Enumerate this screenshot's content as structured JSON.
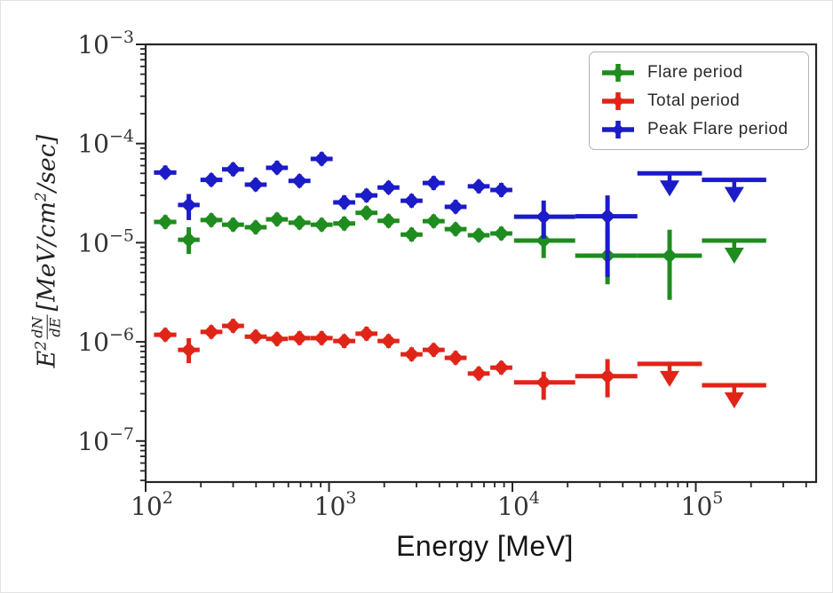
{
  "figure": {
    "xlabel": "Energy [MeV]",
    "ylabel": {
      "var": "E",
      "var_exp": "2",
      "frac_num": "dN",
      "frac_den": "dE",
      "units_pre": "[MeV/cm",
      "units_exp": "2",
      "units_post": "/sec]"
    }
  },
  "axes": {
    "x": {
      "scale": "log",
      "min": 100,
      "max": 450000,
      "major_tick_labels": [
        "10^2",
        "10^3",
        "10^4",
        "10^5"
      ]
    },
    "y": {
      "scale": "log",
      "min": 4e-08,
      "max": 0.001,
      "major_tick_labels": [
        "10^-3",
        "10^-4",
        "10^-5",
        "10^-6",
        "10^-7"
      ]
    },
    "grid": false
  },
  "legend": {
    "position": "upper right",
    "items": [
      {
        "label": "Flare period",
        "color": "#1e8c1e",
        "marker": "plus-errorbar"
      },
      {
        "label": "Total period",
        "color": "#e02518",
        "marker": "plus-errorbar"
      },
      {
        "label": "Peak Flare period",
        "color": "#1b1bc8",
        "marker": "plus-errorbar"
      }
    ]
  },
  "chart_data": {
    "type": "scatter",
    "title": "",
    "xlabel": "Energy [MeV]",
    "ylabel": "E^2 dN/dE [MeV/cm^2/sec]",
    "xscale": "log",
    "yscale": "log",
    "xlim": [
      100,
      450000
    ],
    "ylim": [
      4e-08,
      0.001
    ],
    "legend_position": "upper right",
    "series": [
      {
        "name": "Flare period",
        "color": "#1e8c1e",
        "points": [
          {
            "e": 128,
            "elo": 111,
            "ehi": 147,
            "v": 1.62e-05,
            "vlo": 1.38e-05,
            "vhi": 1.9e-05
          },
          {
            "e": 172,
            "elo": 150,
            "ehi": 197,
            "v": 1.07e-05,
            "vlo": 7.7e-06,
            "vhi": 1.43e-05
          },
          {
            "e": 228,
            "elo": 199,
            "ehi": 262,
            "v": 1.69e-05,
            "vlo": 1.44e-05,
            "vhi": 1.98e-05
          },
          {
            "e": 300,
            "elo": 261,
            "ehi": 344,
            "v": 1.52e-05,
            "vlo": 1.3e-05,
            "vhi": 1.78e-05
          },
          {
            "e": 398,
            "elo": 347,
            "ehi": 457,
            "v": 1.43e-05,
            "vlo": 1.22e-05,
            "vhi": 1.67e-05
          },
          {
            "e": 520,
            "elo": 453,
            "ehi": 597,
            "v": 1.72e-05,
            "vlo": 1.47e-05,
            "vhi": 2.01e-05
          },
          {
            "e": 690,
            "elo": 601,
            "ehi": 792,
            "v": 1.59e-05,
            "vlo": 1.36e-05,
            "vhi": 1.86e-05
          },
          {
            "e": 912,
            "elo": 794,
            "ehi": 1047,
            "v": 1.52e-05,
            "vlo": 1.3e-05,
            "vhi": 1.78e-05
          },
          {
            "e": 1210,
            "elo": 1054,
            "ehi": 1389,
            "v": 1.56e-05,
            "vlo": 1.33e-05,
            "vhi": 1.83e-05
          },
          {
            "e": 1600,
            "elo": 1394,
            "ehi": 1837,
            "v": 2e-05,
            "vlo": 1.71e-05,
            "vhi": 2.34e-05
          },
          {
            "e": 2110,
            "elo": 1838,
            "ehi": 2422,
            "v": 1.66e-05,
            "vlo": 1.42e-05,
            "vhi": 1.94e-05
          },
          {
            "e": 2820,
            "elo": 2457,
            "ehi": 3237,
            "v": 1.21e-05,
            "vlo": 1.03e-05,
            "vhi": 1.42e-05
          },
          {
            "e": 3720,
            "elo": 3240,
            "ehi": 4270,
            "v": 1.65e-05,
            "vlo": 1.41e-05,
            "vhi": 1.93e-05
          },
          {
            "e": 4900,
            "elo": 4269,
            "ehi": 5625,
            "v": 1.37e-05,
            "vlo": 1.17e-05,
            "vhi": 1.6e-05
          },
          {
            "e": 6550,
            "elo": 5706,
            "ehi": 7519,
            "v": 1.19e-05,
            "vlo": 1.02e-05,
            "vhi": 1.39e-05
          },
          {
            "e": 8700,
            "elo": 7578,
            "ehi": 9988,
            "v": 1.24e-05,
            "vlo": 1.06e-05,
            "vhi": 1.45e-05
          },
          {
            "e": 14800,
            "elo": 10200,
            "ehi": 22000,
            "v": 1.05e-05,
            "vlo": 7e-06,
            "vhi": 1.52e-05
          },
          {
            "e": 33000,
            "elo": 22000,
            "ehi": 48000,
            "v": 7.4e-06,
            "vlo": 3.8e-06,
            "vhi": 1.35e-05
          },
          {
            "e": 72000,
            "elo": 48000,
            "ehi": 108000,
            "v": 7.4e-06,
            "vlo": 2.65e-06,
            "vhi": 1.35e-05
          },
          {
            "e": 162000,
            "elo": 108000,
            "ehi": 242000,
            "v": 1.05e-05,
            "ul": true
          }
        ]
      },
      {
        "name": "Total period",
        "color": "#e02518",
        "points": [
          {
            "e": 128,
            "elo": 111,
            "ehi": 147,
            "v": 1.18e-06,
            "vlo": 1.01e-06,
            "vhi": 1.38e-06
          },
          {
            "e": 172,
            "elo": 150,
            "ehi": 197,
            "v": 8.3e-07,
            "vlo": 6.1e-07,
            "vhi": 1.09e-06
          },
          {
            "e": 228,
            "elo": 199,
            "ehi": 262,
            "v": 1.26e-06,
            "vlo": 1.08e-06,
            "vhi": 1.47e-06
          },
          {
            "e": 300,
            "elo": 261,
            "ehi": 344,
            "v": 1.45e-06,
            "vlo": 1.24e-06,
            "vhi": 1.7e-06
          },
          {
            "e": 398,
            "elo": 347,
            "ehi": 457,
            "v": 1.13e-06,
            "vlo": 9.7e-07,
            "vhi": 1.32e-06
          },
          {
            "e": 520,
            "elo": 453,
            "ehi": 597,
            "v": 1.07e-06,
            "vlo": 9.1e-07,
            "vhi": 1.25e-06
          },
          {
            "e": 690,
            "elo": 601,
            "ehi": 792,
            "v": 1.09e-06,
            "vlo": 9.3e-07,
            "vhi": 1.28e-06
          },
          {
            "e": 912,
            "elo": 794,
            "ehi": 1047,
            "v": 1.09e-06,
            "vlo": 9.3e-07,
            "vhi": 1.28e-06
          },
          {
            "e": 1210,
            "elo": 1054,
            "ehi": 1389,
            "v": 1.02e-06,
            "vlo": 8.7e-07,
            "vhi": 1.19e-06
          },
          {
            "e": 1600,
            "elo": 1394,
            "ehi": 1837,
            "v": 1.21e-06,
            "vlo": 1.03e-06,
            "vhi": 1.42e-06
          },
          {
            "e": 2110,
            "elo": 1838,
            "ehi": 2422,
            "v": 1.02e-06,
            "vlo": 8.7e-07,
            "vhi": 1.19e-06
          },
          {
            "e": 2820,
            "elo": 2457,
            "ehi": 3237,
            "v": 7.5e-07,
            "vlo": 6.4e-07,
            "vhi": 8.8e-07
          },
          {
            "e": 3720,
            "elo": 3240,
            "ehi": 4270,
            "v": 8.3e-07,
            "vlo": 7.1e-07,
            "vhi": 9.7e-07
          },
          {
            "e": 4900,
            "elo": 4269,
            "ehi": 5625,
            "v": 6.9e-07,
            "vlo": 5.9e-07,
            "vhi": 8.1e-07
          },
          {
            "e": 6550,
            "elo": 5706,
            "ehi": 7519,
            "v": 4.8e-07,
            "vlo": 4.1e-07,
            "vhi": 5.6e-07
          },
          {
            "e": 8700,
            "elo": 7578,
            "ehi": 9988,
            "v": 5.5e-07,
            "vlo": 4.7e-07,
            "vhi": 6.4e-07
          },
          {
            "e": 14800,
            "elo": 10200,
            "ehi": 22000,
            "v": 3.9e-07,
            "vlo": 2.6e-07,
            "vhi": 5e-07
          },
          {
            "e": 33000,
            "elo": 22000,
            "ehi": 48000,
            "v": 4.5e-07,
            "vlo": 2.76e-07,
            "vhi": 6.7e-07
          },
          {
            "e": 72000,
            "elo": 48000,
            "ehi": 108000,
            "v": 6e-07,
            "ul": true
          },
          {
            "e": 162000,
            "elo": 108000,
            "ehi": 242000,
            "v": 3.65e-07,
            "ul": true
          }
        ]
      },
      {
        "name": "Peak Flare period",
        "color": "#1b1bc8",
        "points": [
          {
            "e": 128,
            "elo": 111,
            "ehi": 147,
            "v": 5.1e-05,
            "vlo": 4.4e-05,
            "vhi": 6e-05
          },
          {
            "e": 172,
            "elo": 150,
            "ehi": 197,
            "v": 2.4e-05,
            "vlo": 1.69e-05,
            "vhi": 3.1e-05
          },
          {
            "e": 228,
            "elo": 199,
            "ehi": 262,
            "v": 4.3e-05,
            "vlo": 3.7e-05,
            "vhi": 5e-05
          },
          {
            "e": 300,
            "elo": 261,
            "ehi": 344,
            "v": 5.5e-05,
            "vlo": 4.7e-05,
            "vhi": 6.4e-05
          },
          {
            "e": 398,
            "elo": 347,
            "ehi": 457,
            "v": 3.85e-05,
            "vlo": 3.3e-05,
            "vhi": 4.5e-05
          },
          {
            "e": 520,
            "elo": 453,
            "ehi": 597,
            "v": 5.7e-05,
            "vlo": 4.9e-05,
            "vhi": 6.7e-05
          },
          {
            "e": 690,
            "elo": 601,
            "ehi": 792,
            "v": 4.2e-05,
            "vlo": 3.6e-05,
            "vhi": 4.9e-05
          },
          {
            "e": 912,
            "elo": 794,
            "ehi": 1047,
            "v": 7e-05,
            "vlo": 6e-05,
            "vhi": 8.2e-05
          },
          {
            "e": 1210,
            "elo": 1054,
            "ehi": 1389,
            "v": 2.55e-05,
            "vlo": 2.18e-05,
            "vhi": 3e-05
          },
          {
            "e": 1600,
            "elo": 1394,
            "ehi": 1837,
            "v": 3e-05,
            "vlo": 2.56e-05,
            "vhi": 3.5e-05
          },
          {
            "e": 2110,
            "elo": 1838,
            "ehi": 2422,
            "v": 3.6e-05,
            "vlo": 3.1e-05,
            "vhi": 4.2e-05
          },
          {
            "e": 2820,
            "elo": 2457,
            "ehi": 3237,
            "v": 2.65e-05,
            "vlo": 2.26e-05,
            "vhi": 3.1e-05
          },
          {
            "e": 3720,
            "elo": 3240,
            "ehi": 4270,
            "v": 4e-05,
            "vlo": 3.4e-05,
            "vhi": 4.7e-05
          },
          {
            "e": 4900,
            "elo": 4269,
            "ehi": 5625,
            "v": 2.3e-05,
            "vlo": 1.97e-05,
            "vhi": 2.7e-05
          },
          {
            "e": 6550,
            "elo": 5706,
            "ehi": 7519,
            "v": 3.7e-05,
            "vlo": 3.16e-05,
            "vhi": 4.3e-05
          },
          {
            "e": 8700,
            "elo": 7578,
            "ehi": 9988,
            "v": 3.4e-05,
            "vlo": 2.9e-05,
            "vhi": 4e-05
          },
          {
            "e": 14800,
            "elo": 10200,
            "ehi": 22000,
            "v": 1.83e-05,
            "vlo": 1.1e-05,
            "vhi": 2.66e-05
          },
          {
            "e": 33000,
            "elo": 22000,
            "ehi": 48000,
            "v": 1.85e-05,
            "vlo": 4.5e-06,
            "vhi": 3e-05
          },
          {
            "e": 72000,
            "elo": 48000,
            "ehi": 108000,
            "v": 5e-05,
            "ul": true
          },
          {
            "e": 162000,
            "elo": 108000,
            "ehi": 242000,
            "v": 4.3e-05,
            "ul": true
          }
        ]
      }
    ]
  }
}
